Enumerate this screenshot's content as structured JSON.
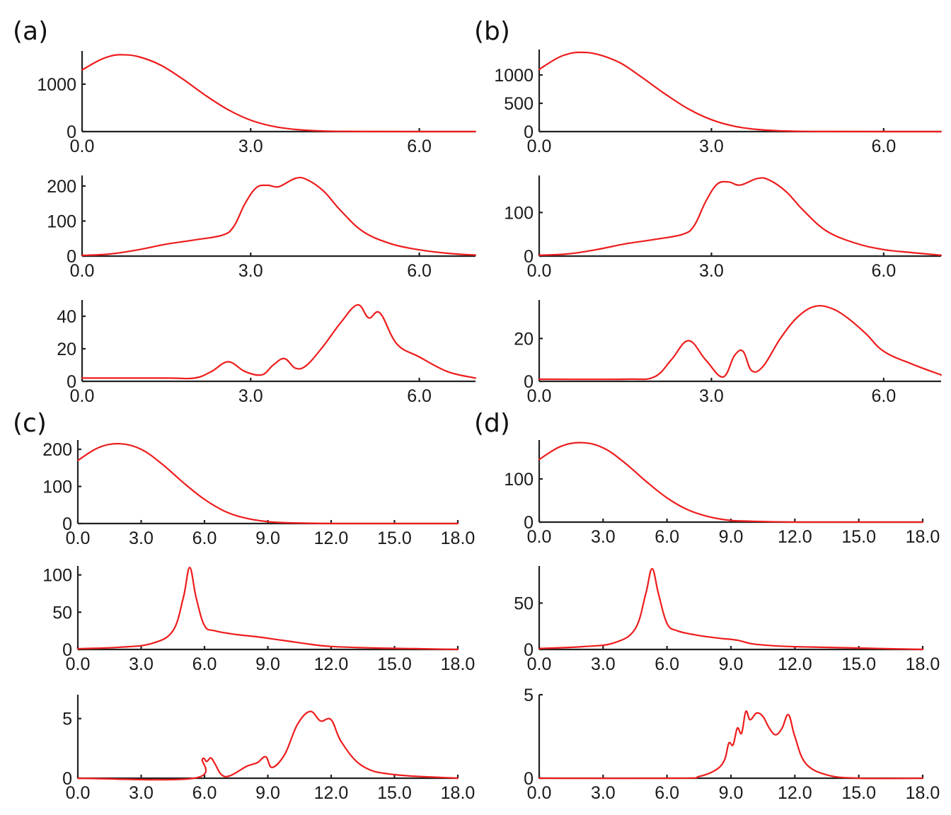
{
  "colors": {
    "curve": "#ee1c1c",
    "axis": "#222222"
  },
  "panels": [
    {
      "label": "(a)"
    },
    {
      "label": "(b)"
    },
    {
      "label": "(c)"
    },
    {
      "label": "(d)"
    }
  ],
  "chart_data": [
    {
      "type": "line",
      "panel": "(a)",
      "title": "",
      "xlabel": "",
      "ylabel": "",
      "xlim": [
        0,
        7
      ],
      "ylim": [
        0,
        1700
      ],
      "xticks": [
        0,
        3,
        6
      ],
      "xtick_labels": [
        "0.0",
        "3.0",
        "6.0"
      ],
      "yticks": [
        0,
        1000
      ],
      "ytick_labels": [
        "0",
        "1000"
      ],
      "series": [
        {
          "name": "curve",
          "x": [
            0,
            0.3,
            0.5,
            0.7,
            1.0,
            1.4,
            1.8,
            2.2,
            2.6,
            3.0,
            3.4,
            3.8,
            4.2,
            4.6,
            5.0,
            6.0,
            7.0
          ],
          "y": [
            1300,
            1500,
            1590,
            1620,
            1580,
            1400,
            1100,
            760,
            460,
            240,
            110,
            45,
            15,
            5,
            2,
            0,
            0
          ]
        }
      ]
    },
    {
      "type": "line",
      "panel": "(a)",
      "title": "",
      "xlabel": "",
      "ylabel": "",
      "xlim": [
        0,
        7
      ],
      "ylim": [
        0,
        230
      ],
      "xticks": [
        0,
        3,
        6
      ],
      "xtick_labels": [
        "0.0",
        "3.0",
        "6.0"
      ],
      "yticks": [
        0,
        100,
        200
      ],
      "ytick_labels": [
        "0",
        "100",
        "200"
      ],
      "series": [
        {
          "name": "curve",
          "x": [
            0,
            0.5,
            1.0,
            1.5,
            2.0,
            2.5,
            2.7,
            2.9,
            3.1,
            3.3,
            3.5,
            3.8,
            4.0,
            4.3,
            4.6,
            5.0,
            5.5,
            6.0,
            6.5,
            7.0
          ],
          "y": [
            2,
            6,
            18,
            34,
            46,
            60,
            85,
            150,
            195,
            202,
            198,
            222,
            218,
            185,
            130,
            70,
            35,
            18,
            8,
            3
          ]
        }
      ]
    },
    {
      "type": "line",
      "panel": "(a)",
      "title": "",
      "xlabel": "",
      "ylabel": "",
      "xlim": [
        0,
        7
      ],
      "ylim": [
        0,
        50
      ],
      "xticks": [
        0,
        3,
        6
      ],
      "xtick_labels": [
        "0.0",
        "3.0",
        "6.0"
      ],
      "yticks": [
        0,
        20,
        40
      ],
      "ytick_labels": [
        "0",
        "20",
        "40"
      ],
      "series": [
        {
          "name": "curve",
          "x": [
            0,
            1.5,
            2.0,
            2.3,
            2.6,
            2.9,
            3.2,
            3.4,
            3.6,
            3.8,
            4.0,
            4.3,
            4.6,
            4.9,
            5.1,
            5.3,
            5.6,
            6.0,
            6.5,
            7.0
          ],
          "y": [
            2,
            2,
            2,
            6,
            12,
            6,
            4,
            10,
            14,
            8,
            10,
            22,
            36,
            47,
            39,
            42,
            23,
            15,
            6,
            2
          ]
        }
      ]
    },
    {
      "type": "line",
      "panel": "(b)",
      "title": "",
      "xlabel": "",
      "ylabel": "",
      "xlim": [
        0,
        7
      ],
      "ylim": [
        0,
        1450
      ],
      "xticks": [
        0,
        3,
        6
      ],
      "xtick_labels": [
        "0.0",
        "3.0",
        "6.0"
      ],
      "yticks": [
        0,
        500,
        1000
      ],
      "ytick_labels": [
        "0",
        "500",
        "1000"
      ],
      "series": [
        {
          "name": "curve",
          "x": [
            0,
            0.3,
            0.5,
            0.7,
            1.0,
            1.4,
            1.8,
            2.2,
            2.6,
            3.0,
            3.4,
            3.8,
            4.2,
            4.6,
            5.0,
            6.0,
            7.0
          ],
          "y": [
            1100,
            1290,
            1370,
            1400,
            1370,
            1220,
            950,
            660,
            400,
            210,
            95,
            38,
            13,
            4,
            1,
            0,
            0
          ]
        }
      ]
    },
    {
      "type": "line",
      "panel": "(b)",
      "title": "",
      "xlabel": "",
      "ylabel": "",
      "xlim": [
        0,
        7
      ],
      "ylim": [
        0,
        185
      ],
      "xticks": [
        0,
        3,
        6
      ],
      "xtick_labels": [
        "0.0",
        "3.0",
        "6.0"
      ],
      "yticks": [
        0,
        100
      ],
      "ytick_labels": [
        "0",
        "100"
      ],
      "series": [
        {
          "name": "curve",
          "x": [
            0,
            0.5,
            1.0,
            1.5,
            2.0,
            2.5,
            2.7,
            2.9,
            3.1,
            3.3,
            3.5,
            3.8,
            4.0,
            4.3,
            4.6,
            5.0,
            5.5,
            6.0,
            6.5,
            7.0
          ],
          "y": [
            2,
            5,
            15,
            28,
            38,
            50,
            70,
            125,
            165,
            170,
            163,
            178,
            175,
            148,
            105,
            58,
            30,
            15,
            8,
            2
          ]
        }
      ]
    },
    {
      "type": "line",
      "panel": "(b)",
      "title": "",
      "xlabel": "",
      "ylabel": "",
      "xlim": [
        0,
        7
      ],
      "ylim": [
        0,
        38
      ],
      "xticks": [
        0,
        3,
        6
      ],
      "xtick_labels": [
        "0.0",
        "3.0",
        "6.0"
      ],
      "yticks": [
        0,
        20
      ],
      "ytick_labels": [
        "0",
        "20"
      ],
      "series": [
        {
          "name": "curve",
          "x": [
            0,
            1.5,
            2.0,
            2.3,
            2.6,
            2.9,
            3.2,
            3.4,
            3.55,
            3.7,
            3.9,
            4.2,
            4.5,
            4.8,
            5.1,
            5.4,
            5.7,
            6.0,
            6.5,
            7.0
          ],
          "y": [
            1,
            1,
            2,
            10,
            19,
            10,
            2,
            12,
            14,
            5,
            7,
            20,
            30,
            35,
            34,
            29,
            22,
            14,
            8,
            3
          ]
        }
      ]
    },
    {
      "type": "line",
      "panel": "(c)",
      "title": "",
      "xlabel": "",
      "ylabel": "",
      "xlim": [
        0,
        18
      ],
      "ylim": [
        0,
        225
      ],
      "xticks": [
        0,
        3,
        6,
        9,
        12,
        15,
        18
      ],
      "xtick_labels": [
        "0.0",
        "3.0",
        "6.0",
        "9.0",
        "12.0",
        "15.0",
        "18.0"
      ],
      "yticks": [
        0,
        100,
        200
      ],
      "ytick_labels": [
        "0",
        "100",
        "200"
      ],
      "series": [
        {
          "name": "curve",
          "x": [
            0,
            1.0,
            2.0,
            3.0,
            4.0,
            5.0,
            6.0,
            7.0,
            8.0,
            9.0,
            10.0,
            12.0,
            15.0,
            18.0
          ],
          "y": [
            170,
            205,
            215,
            200,
            160,
            110,
            65,
            32,
            14,
            5,
            2,
            0,
            0,
            0
          ]
        }
      ]
    },
    {
      "type": "line",
      "panel": "(c)",
      "title": "",
      "xlabel": "",
      "ylabel": "",
      "xlim": [
        0,
        18
      ],
      "ylim": [
        0,
        112
      ],
      "xticks": [
        0,
        3,
        6,
        9,
        12,
        15,
        18
      ],
      "xtick_labels": [
        "0.0",
        "3.0",
        "6.0",
        "9.0",
        "12.0",
        "15.0",
        "18.0"
      ],
      "yticks": [
        0,
        50,
        100
      ],
      "ytick_labels": [
        "0",
        "50",
        "100"
      ],
      "series": [
        {
          "name": "curve",
          "x": [
            0,
            2.0,
            3.5,
            4.5,
            5.0,
            5.3,
            5.6,
            6.0,
            6.5,
            7.5,
            8.5,
            9.5,
            10.0,
            11.0,
            12.0,
            14.0,
            16.0,
            18.0
          ],
          "y": [
            1,
            3,
            8,
            25,
            70,
            110,
            70,
            32,
            25,
            20,
            17,
            13,
            11,
            7,
            4,
            2,
            1,
            0
          ]
        }
      ]
    },
    {
      "type": "line",
      "panel": "(c)",
      "title": "",
      "xlabel": "",
      "ylabel": "",
      "xlim": [
        0,
        18
      ],
      "ylim": [
        0,
        7
      ],
      "xticks": [
        0,
        3,
        6,
        9,
        12,
        15,
        18
      ],
      "xtick_labels": [
        "0.0",
        "3.0",
        "6.0",
        "9.0",
        "12.0",
        "15.0",
        "18.0"
      ],
      "yticks": [
        0,
        5
      ],
      "ytick_labels": [
        "0",
        "5"
      ],
      "series": [
        {
          "name": "curve",
          "x": [
            0,
            5.5,
            5.9,
            6.1,
            6.3,
            6.5,
            6.8,
            7.2,
            8.0,
            8.5,
            8.9,
            9.2,
            9.8,
            10.4,
            11.0,
            11.5,
            12.0,
            12.5,
            13.5,
            15.0,
            18.0
          ],
          "y": [
            0,
            0,
            1.6,
            1.4,
            1.7,
            1.2,
            0.3,
            0.2,
            1.0,
            1.3,
            1.8,
            0.9,
            2.0,
            4.5,
            5.6,
            4.8,
            4.9,
            3.0,
            1.0,
            0.3,
            0
          ]
        }
      ]
    },
    {
      "type": "line",
      "panel": "(d)",
      "title": "",
      "xlabel": "",
      "ylabel": "",
      "xlim": [
        0,
        18
      ],
      "ylim": [
        0,
        190
      ],
      "xticks": [
        0,
        3,
        6,
        9,
        12,
        15,
        18
      ],
      "xtick_labels": [
        "0.0",
        "3.0",
        "6.0",
        "9.0",
        "12.0",
        "15.0",
        "18.0"
      ],
      "yticks": [
        0,
        100
      ],
      "ytick_labels": [
        "0",
        "100"
      ],
      "series": [
        {
          "name": "curve",
          "x": [
            0,
            1.0,
            2.0,
            3.0,
            4.0,
            5.0,
            6.0,
            7.0,
            8.0,
            9.0,
            10.0,
            12.0,
            15.0,
            18.0
          ],
          "y": [
            145,
            175,
            184,
            172,
            138,
            95,
            56,
            28,
            12,
            4,
            2,
            0,
            0,
            0
          ]
        }
      ]
    },
    {
      "type": "line",
      "panel": "(d)",
      "title": "",
      "xlabel": "",
      "ylabel": "",
      "xlim": [
        0,
        18
      ],
      "ylim": [
        0,
        90
      ],
      "xticks": [
        0,
        3,
        6,
        9,
        12,
        15,
        18
      ],
      "xtick_labels": [
        "0.0",
        "3.0",
        "6.0",
        "9.0",
        "12.0",
        "15.0",
        "18.0"
      ],
      "yticks": [
        0,
        50
      ],
      "ytick_labels": [
        "0",
        "50"
      ],
      "series": [
        {
          "name": "curve",
          "x": [
            0,
            2.0,
            3.5,
            4.5,
            5.0,
            5.3,
            5.6,
            6.0,
            6.5,
            7.5,
            8.5,
            9.3,
            10.0,
            11.0,
            12.0,
            14.0,
            16.0,
            18.0
          ],
          "y": [
            1,
            3,
            7,
            22,
            60,
            87,
            60,
            28,
            20,
            15,
            12,
            10,
            6,
            4,
            3,
            2,
            1,
            0
          ]
        }
      ]
    },
    {
      "type": "line",
      "panel": "(d)",
      "title": "",
      "xlabel": "",
      "ylabel": "",
      "xlim": [
        0,
        18
      ],
      "ylim": [
        0,
        5
      ],
      "xticks": [
        0,
        3,
        6,
        9,
        12,
        15,
        18
      ],
      "xtick_labels": [
        "0.0",
        "3.0",
        "6.0",
        "9.0",
        "12.0",
        "15.0",
        "18.0"
      ],
      "yticks": [
        0,
        5
      ],
      "ytick_labels": [
        "0",
        "5"
      ],
      "series": [
        {
          "name": "curve",
          "x": [
            0,
            6.5,
            7.5,
            8.3,
            8.7,
            8.9,
            9.1,
            9.3,
            9.5,
            9.7,
            9.9,
            10.2,
            10.5,
            10.8,
            11.1,
            11.4,
            11.7,
            12.0,
            12.5,
            13.5,
            15.0,
            18.0
          ],
          "y": [
            0,
            0,
            0.1,
            0.5,
            1.1,
            2.1,
            2.0,
            3.0,
            2.7,
            4.0,
            3.5,
            3.9,
            3.7,
            3.0,
            2.6,
            3.0,
            3.8,
            2.5,
            0.9,
            0.2,
            0,
            0
          ]
        }
      ]
    }
  ]
}
